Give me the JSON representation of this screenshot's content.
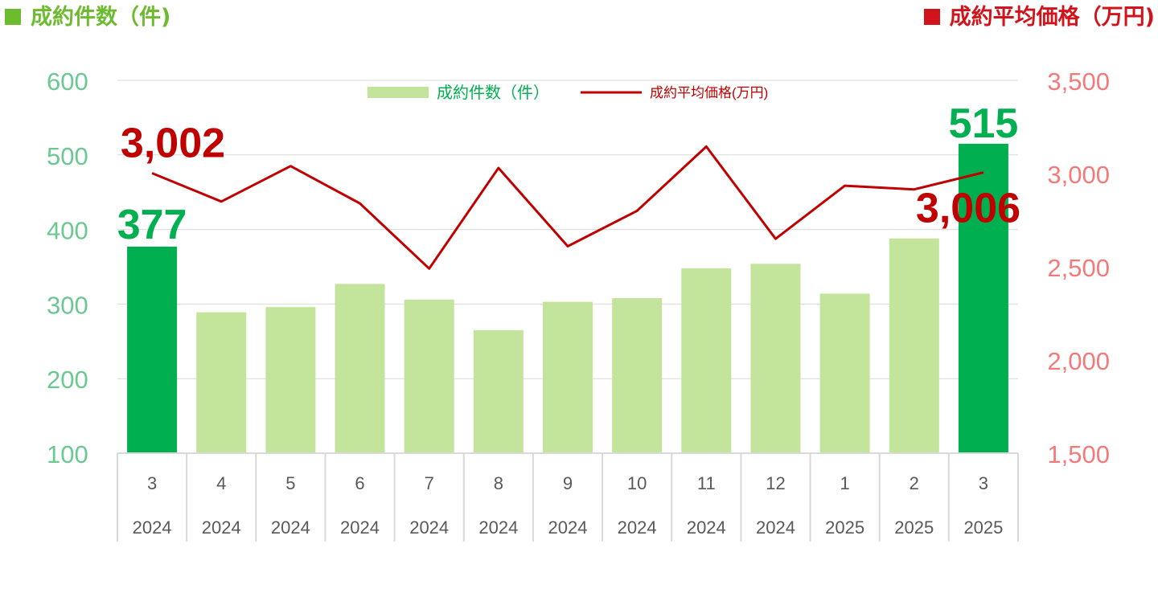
{
  "header": {
    "left_title": "成約件数（件)",
    "right_title": "成約平均価格（万円)"
  },
  "colors": {
    "bar_light": "#c3e59b",
    "bar_highlight": "#00b050",
    "line": "#c00000",
    "left_axis": "#6bc890",
    "right_axis": "#f47a7a",
    "grid": "#d9d9d9",
    "category_text": "#595959",
    "left_header": "#6dbb2f",
    "right_header": "#d1141b"
  },
  "chart_data": {
    "type": "bar+line",
    "categories": [
      {
        "month": "3",
        "year": "2024"
      },
      {
        "month": "4",
        "year": "2024"
      },
      {
        "month": "5",
        "year": "2024"
      },
      {
        "month": "6",
        "year": "2024"
      },
      {
        "month": "7",
        "year": "2024"
      },
      {
        "month": "8",
        "year": "2024"
      },
      {
        "month": "9",
        "year": "2024"
      },
      {
        "month": "10",
        "year": "2024"
      },
      {
        "month": "11",
        "year": "2024"
      },
      {
        "month": "12",
        "year": "2024"
      },
      {
        "month": "1",
        "year": "2025"
      },
      {
        "month": "2",
        "year": "2025"
      },
      {
        "month": "3",
        "year": "2025"
      }
    ],
    "series": [
      {
        "name": "成約件数（件）",
        "type": "bar",
        "axis": "left",
        "values": [
          377,
          289,
          296,
          327,
          306,
          265,
          303,
          308,
          348,
          354,
          314,
          388,
          515
        ],
        "highlight": [
          true,
          false,
          false,
          false,
          false,
          false,
          false,
          false,
          false,
          false,
          false,
          false,
          true
        ]
      },
      {
        "name": "成約平均価格(万円)",
        "type": "line",
        "axis": "right",
        "values": [
          3002,
          2850,
          3040,
          2840,
          2490,
          3030,
          2610,
          2800,
          3145,
          2650,
          2935,
          2915,
          3006
        ]
      }
    ],
    "left_axis": {
      "min": 100,
      "max": 600,
      "ticks": [
        "100",
        "200",
        "300",
        "400",
        "500",
        "600"
      ]
    },
    "right_axis": {
      "min": 1500,
      "max": 3500,
      "ticks": [
        "1,500",
        "2,000",
        "2,500",
        "3,000",
        "3,500"
      ]
    },
    "data_labels": [
      {
        "text": "377",
        "series": 0,
        "index": 0
      },
      {
        "text": "515",
        "series": 0,
        "index": 12
      },
      {
        "text": "3,002",
        "series": 1,
        "index": 0
      },
      {
        "text": "3,006",
        "series": 1,
        "index": 12
      }
    ],
    "legend_position": "top-center",
    "grid": true
  }
}
